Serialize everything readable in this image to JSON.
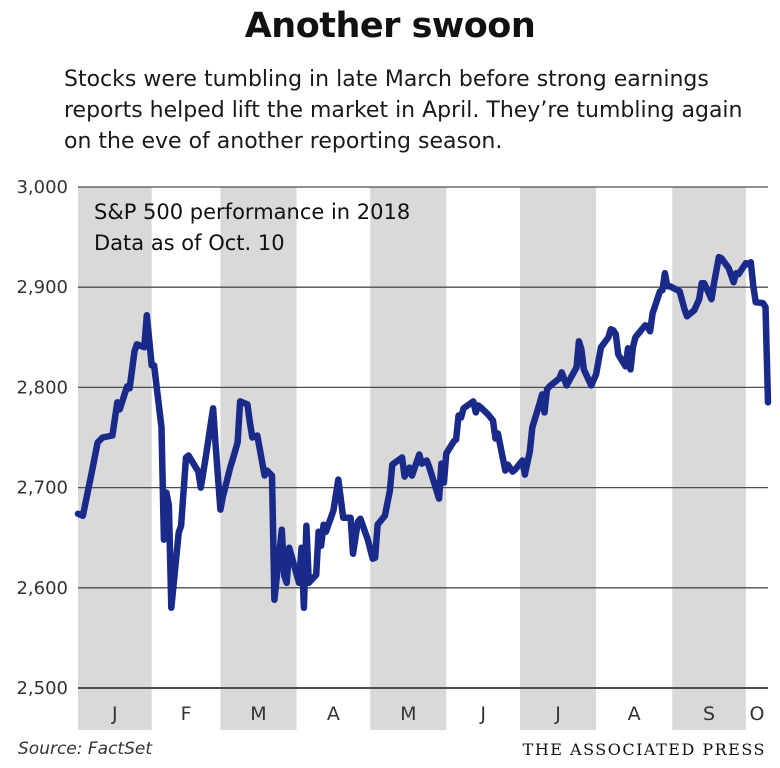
{
  "header": {
    "title": "Another swoon",
    "subtitle": "Stocks were tumbling in late March before strong earnings reports helped lift the market in April. They’re tumbling again on the eve of another reporting season."
  },
  "footer": {
    "source": "Source: FactSet",
    "credit": "THE ASSOCIATED PRESS"
  },
  "colors": {
    "line": "#1a2a8a",
    "band": "#d9d9d9",
    "grid": "#4d4d4d"
  },
  "chart_data": {
    "type": "line",
    "notes": [
      "S&P 500 performance in 2018",
      "Data as of Oct. 10"
    ],
    "ylim": [
      2500,
      3000
    ],
    "yticks": [
      2500,
      2600,
      2700,
      2800,
      2900,
      3000
    ],
    "ytick_labels": [
      "2,500",
      "2,600",
      "2,700",
      "2,800",
      "2,900",
      "3,000"
    ],
    "months": [
      "J",
      "F",
      "M",
      "A",
      "M",
      "J",
      "J",
      "A",
      "S",
      "O"
    ],
    "x_start": "2018-01-02",
    "x_end": "2018-10-10",
    "grid": true,
    "series": [
      {
        "values": [
          [
            "2018-01-02",
            2674
          ],
          [
            "2018-01-04",
            2672
          ],
          [
            "2018-01-08",
            2720
          ],
          [
            "2018-01-10",
            2745
          ],
          [
            "2018-01-12",
            2750
          ],
          [
            "2018-01-16",
            2752
          ],
          [
            "2018-01-18",
            2785
          ],
          [
            "2018-01-19",
            2778
          ],
          [
            "2018-01-22",
            2801
          ],
          [
            "2018-01-23",
            2799
          ],
          [
            "2018-01-25",
            2836
          ],
          [
            "2018-01-26",
            2843
          ],
          [
            "2018-01-29",
            2840
          ],
          [
            "2018-01-30",
            2872
          ],
          [
            "2018-02-01",
            2822
          ],
          [
            "2018-02-02",
            2822
          ],
          [
            "2018-02-05",
            2760
          ],
          [
            "2018-02-06",
            2648
          ],
          [
            "2018-02-07",
            2695
          ],
          [
            "2018-02-08",
            2682
          ],
          [
            "2018-02-09",
            2580
          ],
          [
            "2018-02-12",
            2655
          ],
          [
            "2018-02-13",
            2662
          ],
          [
            "2018-02-15",
            2730
          ],
          [
            "2018-02-16",
            2732
          ],
          [
            "2018-02-20",
            2716
          ],
          [
            "2018-02-21",
            2700
          ],
          [
            "2018-02-23",
            2730
          ],
          [
            "2018-02-26",
            2779
          ],
          [
            "2018-02-27",
            2744
          ],
          [
            "2018-03-01",
            2678
          ],
          [
            "2018-03-02",
            2691
          ],
          [
            "2018-03-05",
            2720
          ],
          [
            "2018-03-06",
            2728
          ],
          [
            "2018-03-08",
            2745
          ],
          [
            "2018-03-09",
            2786
          ],
          [
            "2018-03-12",
            2783
          ],
          [
            "2018-03-13",
            2765
          ],
          [
            "2018-03-14",
            2750
          ],
          [
            "2018-03-16",
            2752
          ],
          [
            "2018-03-19",
            2712
          ],
          [
            "2018-03-20",
            2717
          ],
          [
            "2018-03-22",
            2712
          ],
          [
            "2018-03-23",
            2588
          ],
          [
            "2018-03-26",
            2658
          ],
          [
            "2018-03-27",
            2612
          ],
          [
            "2018-03-28",
            2605
          ],
          [
            "2018-03-29",
            2640
          ],
          [
            "2018-04-02",
            2605
          ],
          [
            "2018-04-03",
            2640
          ],
          [
            "2018-04-04",
            2580
          ],
          [
            "2018-04-05",
            2662
          ],
          [
            "2018-04-06",
            2605
          ],
          [
            "2018-04-09",
            2613
          ],
          [
            "2018-04-10",
            2656
          ],
          [
            "2018-04-11",
            2642
          ],
          [
            "2018-04-12",
            2663
          ],
          [
            "2018-04-13",
            2656
          ],
          [
            "2018-04-16",
            2677
          ],
          [
            "2018-04-18",
            2708
          ],
          [
            "2018-04-20",
            2670
          ],
          [
            "2018-04-23",
            2670
          ],
          [
            "2018-04-24",
            2634
          ],
          [
            "2018-04-26",
            2666
          ],
          [
            "2018-04-27",
            2669
          ],
          [
            "2018-04-30",
            2648
          ],
          [
            "2018-05-02",
            2629
          ],
          [
            "2018-05-03",
            2630
          ],
          [
            "2018-05-04",
            2663
          ],
          [
            "2018-05-07",
            2672
          ],
          [
            "2018-05-09",
            2697
          ],
          [
            "2018-05-10",
            2723
          ],
          [
            "2018-05-14",
            2730
          ],
          [
            "2018-05-15",
            2711
          ],
          [
            "2018-05-17",
            2720
          ],
          [
            "2018-05-18",
            2712
          ],
          [
            "2018-05-21",
            2733
          ],
          [
            "2018-05-22",
            2724
          ],
          [
            "2018-05-24",
            2727
          ],
          [
            "2018-05-25",
            2721
          ],
          [
            "2018-05-29",
            2689
          ],
          [
            "2018-05-30",
            2724
          ],
          [
            "2018-05-31",
            2705
          ],
          [
            "2018-06-01",
            2734
          ],
          [
            "2018-06-04",
            2746
          ],
          [
            "2018-06-05",
            2748
          ],
          [
            "2018-06-06",
            2772
          ],
          [
            "2018-06-07",
            2770
          ],
          [
            "2018-06-08",
            2779
          ],
          [
            "2018-06-12",
            2786
          ],
          [
            "2018-06-13",
            2775
          ],
          [
            "2018-06-14",
            2782
          ],
          [
            "2018-06-15",
            2780
          ],
          [
            "2018-06-18",
            2773
          ],
          [
            "2018-06-20",
            2767
          ],
          [
            "2018-06-21",
            2749
          ],
          [
            "2018-06-22",
            2754
          ],
          [
            "2018-06-25",
            2717
          ],
          [
            "2018-06-26",
            2723
          ],
          [
            "2018-06-28",
            2716
          ],
          [
            "2018-06-29",
            2718
          ],
          [
            "2018-07-02",
            2727
          ],
          [
            "2018-07-03",
            2713
          ],
          [
            "2018-07-05",
            2736
          ],
          [
            "2018-07-06",
            2760
          ],
          [
            "2018-07-09",
            2784
          ],
          [
            "2018-07-10",
            2793
          ],
          [
            "2018-07-11",
            2775
          ],
          [
            "2018-07-12",
            2798
          ],
          [
            "2018-07-13",
            2801
          ],
          [
            "2018-07-17",
            2809
          ],
          [
            "2018-07-18",
            2815
          ],
          [
            "2018-07-20",
            2802
          ],
          [
            "2018-07-24",
            2820
          ],
          [
            "2018-07-25",
            2846
          ],
          [
            "2018-07-26",
            2838
          ],
          [
            "2018-07-27",
            2818
          ],
          [
            "2018-07-30",
            2802
          ],
          [
            "2018-08-01",
            2813
          ],
          [
            "2018-08-02",
            2827
          ],
          [
            "2018-08-03",
            2840
          ],
          [
            "2018-08-06",
            2850
          ],
          [
            "2018-08-07",
            2858
          ],
          [
            "2018-08-08",
            2857
          ],
          [
            "2018-08-09",
            2853
          ],
          [
            "2018-08-10",
            2833
          ],
          [
            "2018-08-13",
            2821
          ],
          [
            "2018-08-14",
            2839
          ],
          [
            "2018-08-15",
            2818
          ],
          [
            "2018-08-16",
            2840
          ],
          [
            "2018-08-17",
            2850
          ],
          [
            "2018-08-21",
            2862
          ],
          [
            "2018-08-22",
            2861
          ],
          [
            "2018-08-23",
            2856
          ],
          [
            "2018-08-24",
            2874
          ],
          [
            "2018-08-27",
            2896
          ],
          [
            "2018-08-28",
            2897
          ],
          [
            "2018-08-29",
            2914
          ],
          [
            "2018-08-30",
            2901
          ],
          [
            "2018-08-31",
            2901
          ],
          [
            "2018-09-04",
            2896
          ],
          [
            "2018-09-06",
            2878
          ],
          [
            "2018-09-07",
            2871
          ],
          [
            "2018-09-10",
            2877
          ],
          [
            "2018-09-12",
            2888
          ],
          [
            "2018-09-13",
            2904
          ],
          [
            "2018-09-14",
            2904
          ],
          [
            "2018-09-17",
            2888
          ],
          [
            "2018-09-18",
            2904
          ],
          [
            "2018-09-20",
            2930
          ],
          [
            "2018-09-21",
            2929
          ],
          [
            "2018-09-24",
            2919
          ],
          [
            "2018-09-26",
            2905
          ],
          [
            "2018-09-27",
            2914
          ],
          [
            "2018-09-28",
            2913
          ],
          [
            "2018-10-01",
            2924
          ],
          [
            "2018-10-02",
            2923
          ],
          [
            "2018-10-03",
            2925
          ],
          [
            "2018-10-04",
            2901
          ],
          [
            "2018-10-05",
            2885
          ],
          [
            "2018-10-08",
            2884
          ],
          [
            "2018-10-09",
            2880
          ],
          [
            "2018-10-10",
            2785
          ]
        ]
      }
    ]
  }
}
